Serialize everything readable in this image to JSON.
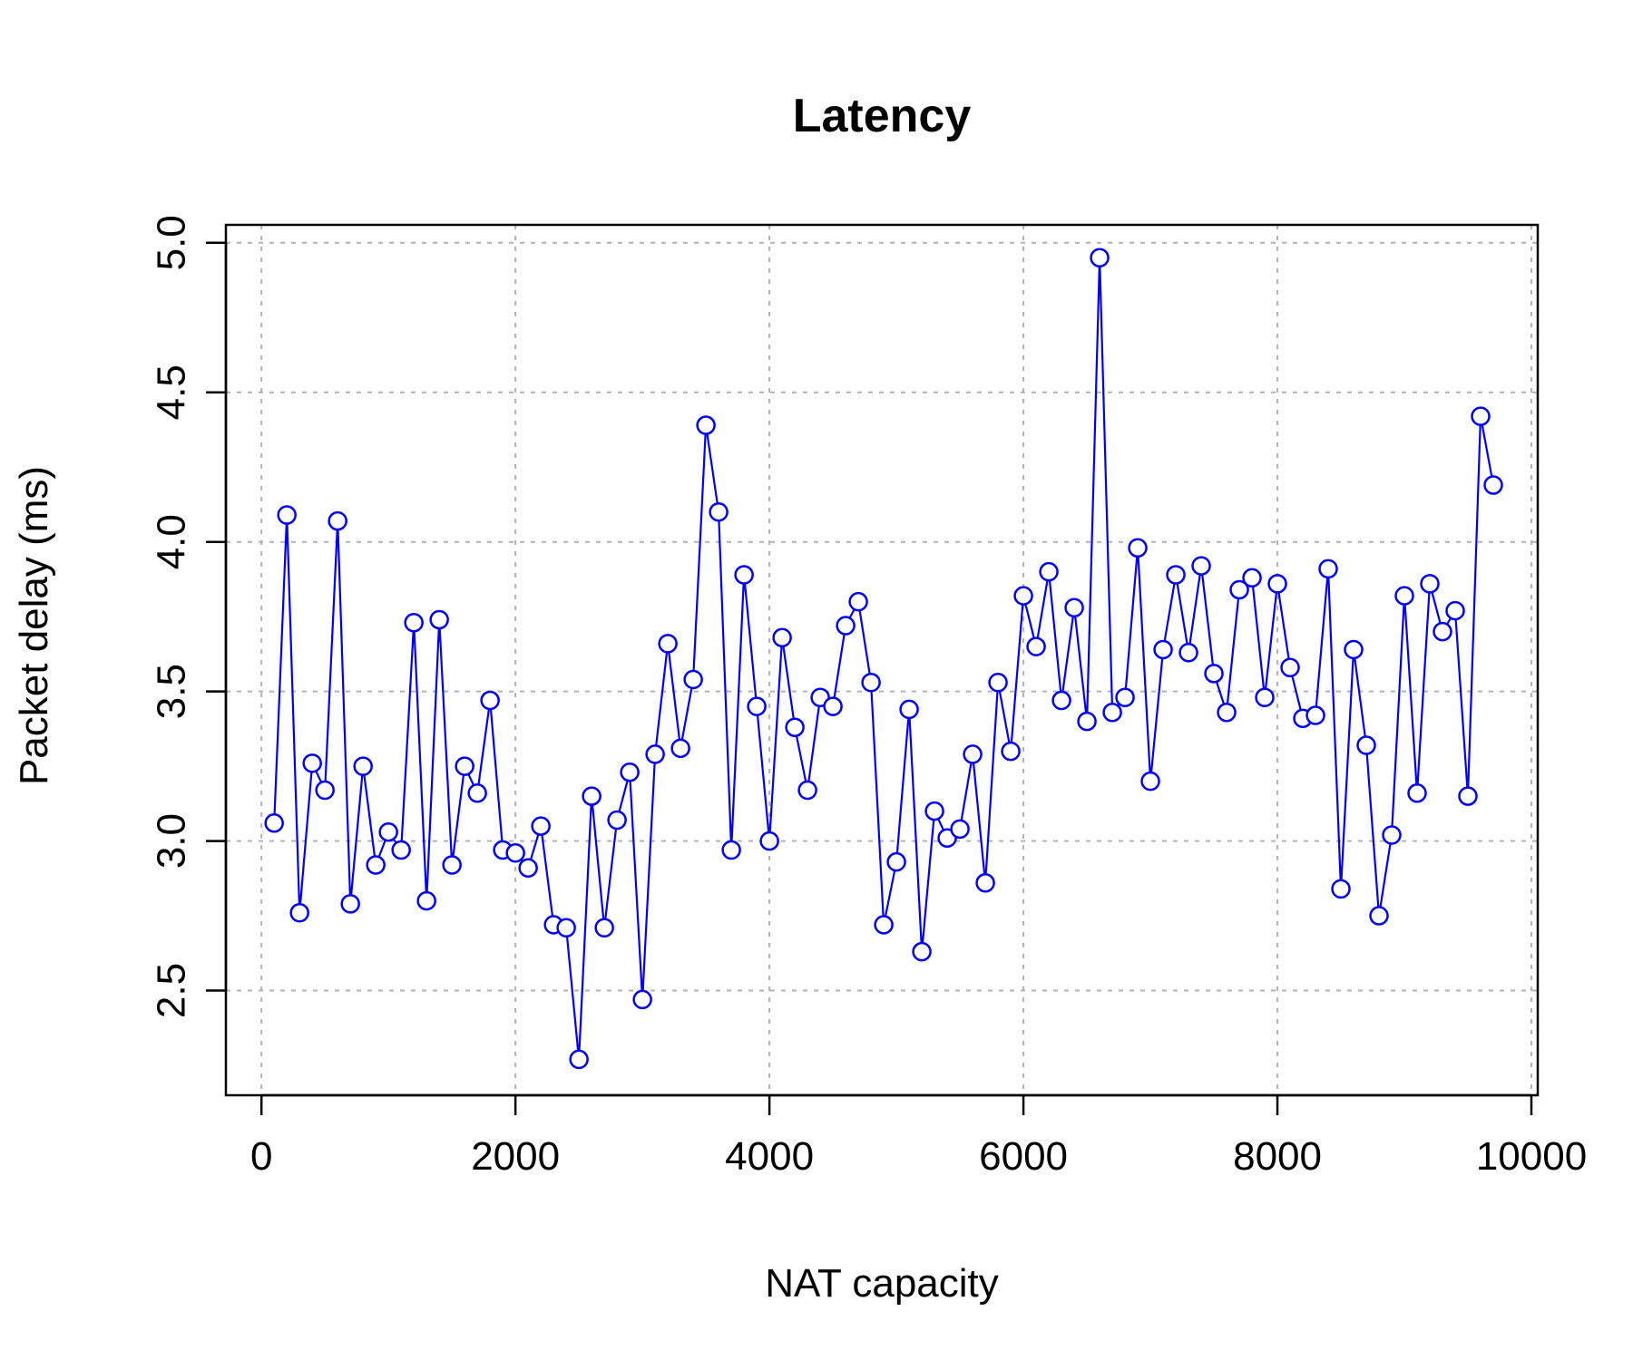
{
  "chart_data": {
    "type": "line",
    "title": "Latency",
    "xlabel": "NAT capacity",
    "ylabel": "Packet delay (ms)",
    "xlim": [
      -280,
      10050
    ],
    "ylim": [
      2.15,
      5.06
    ],
    "xticks": [
      0,
      2000,
      4000,
      6000,
      8000,
      10000
    ],
    "xtick_labels": [
      "0",
      "2000",
      "4000",
      "6000",
      "8000",
      "10000"
    ],
    "yticks": [
      2.5,
      3.0,
      3.5,
      4.0,
      4.5,
      5.0
    ],
    "ytick_labels": [
      "2.5",
      "3.0",
      "3.5",
      "4.0",
      "4.5",
      "5.0"
    ],
    "grid": true,
    "markers": "open-circle",
    "series": [
      {
        "color": "#0000ff",
        "x": [
          100,
          200,
          300,
          400,
          500,
          600,
          700,
          800,
          900,
          1000,
          1100,
          1200,
          1300,
          1400,
          1500,
          1600,
          1700,
          1800,
          1900,
          2000,
          2100,
          2200,
          2300,
          2400,
          2500,
          2600,
          2700,
          2800,
          2900,
          3000,
          3100,
          3200,
          3300,
          3400,
          3500,
          3600,
          3700,
          3800,
          3900,
          4000,
          4100,
          4200,
          4300,
          4400,
          4500,
          4600,
          4700,
          4800,
          4900,
          5000,
          5100,
          5200,
          5300,
          5400,
          5500,
          5600,
          5700,
          5800,
          5900,
          6000,
          6100,
          6200,
          6300,
          6400,
          6500,
          6600,
          6700,
          6800,
          6900,
          7000,
          7100,
          7200,
          7300,
          7400,
          7500,
          7600,
          7700,
          7800,
          7900,
          8000,
          8100,
          8200,
          8300,
          8400,
          8500,
          8600,
          8700,
          8800,
          8900,
          9000,
          9100,
          9200,
          9300,
          9400,
          9500,
          9600,
          9700
        ],
        "y": [
          3.06,
          4.09,
          2.76,
          3.26,
          3.17,
          4.07,
          2.79,
          3.25,
          2.92,
          3.03,
          2.97,
          3.73,
          2.8,
          3.74,
          2.92,
          3.25,
          3.16,
          3.47,
          2.97,
          2.96,
          2.91,
          3.05,
          2.72,
          2.71,
          2.27,
          3.15,
          2.71,
          3.07,
          3.23,
          2.47,
          3.29,
          3.66,
          3.31,
          3.54,
          4.39,
          4.1,
          2.97,
          3.89,
          3.45,
          3.0,
          3.68,
          3.38,
          3.17,
          3.48,
          3.45,
          3.72,
          3.8,
          3.53,
          2.72,
          2.93,
          3.44,
          2.63,
          3.1,
          3.01,
          3.04,
          3.29,
          2.86,
          3.53,
          3.3,
          3.82,
          3.65,
          3.9,
          3.47,
          3.78,
          3.4,
          4.95,
          3.43,
          3.48,
          3.98,
          3.2,
          3.64,
          3.89,
          3.63,
          3.92,
          3.56,
          3.43,
          3.84,
          3.88,
          3.48,
          3.86,
          3.58,
          3.41,
          3.42,
          3.91,
          2.84,
          3.64,
          3.32,
          2.75,
          3.02,
          3.82,
          3.16,
          3.86,
          3.7,
          3.77,
          3.15,
          4.42,
          4.19
        ]
      }
    ]
  }
}
